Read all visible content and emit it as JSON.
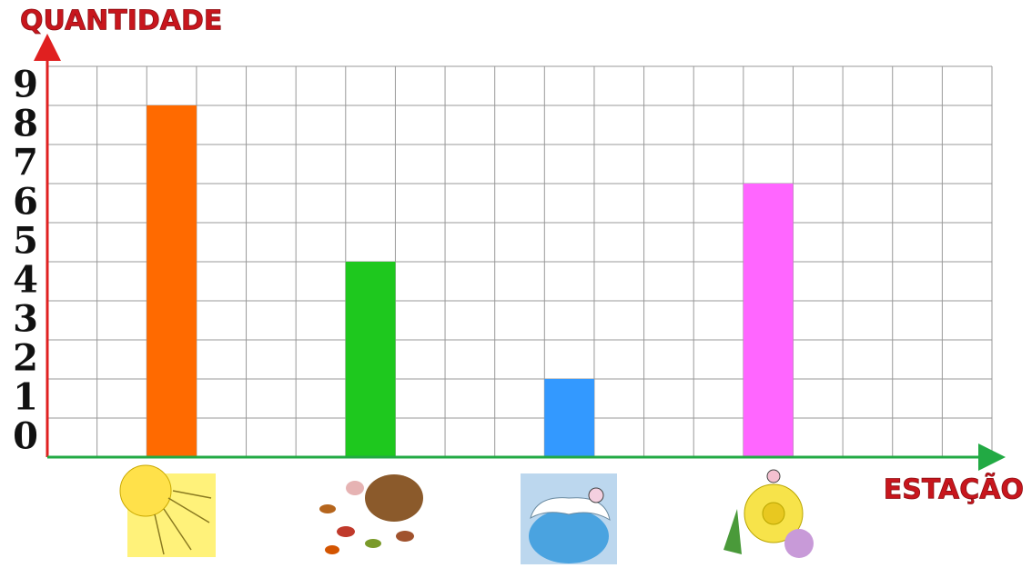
{
  "chart_data": {
    "type": "bar",
    "title": "QUANTIDADE",
    "x_label": "ESTAÇÃO",
    "categories": [
      null,
      null,
      null,
      null
    ],
    "values": [
      8,
      4,
      1,
      6
    ],
    "colors": [
      "#ff6a00",
      "#1ec81e",
      "#3399ff",
      "#ff66ff"
    ],
    "ylim": [
      -1,
      9
    ],
    "yticks": [
      0,
      1,
      2,
      3,
      4,
      5,
      6,
      7,
      8,
      9
    ],
    "grid": true
  }
}
